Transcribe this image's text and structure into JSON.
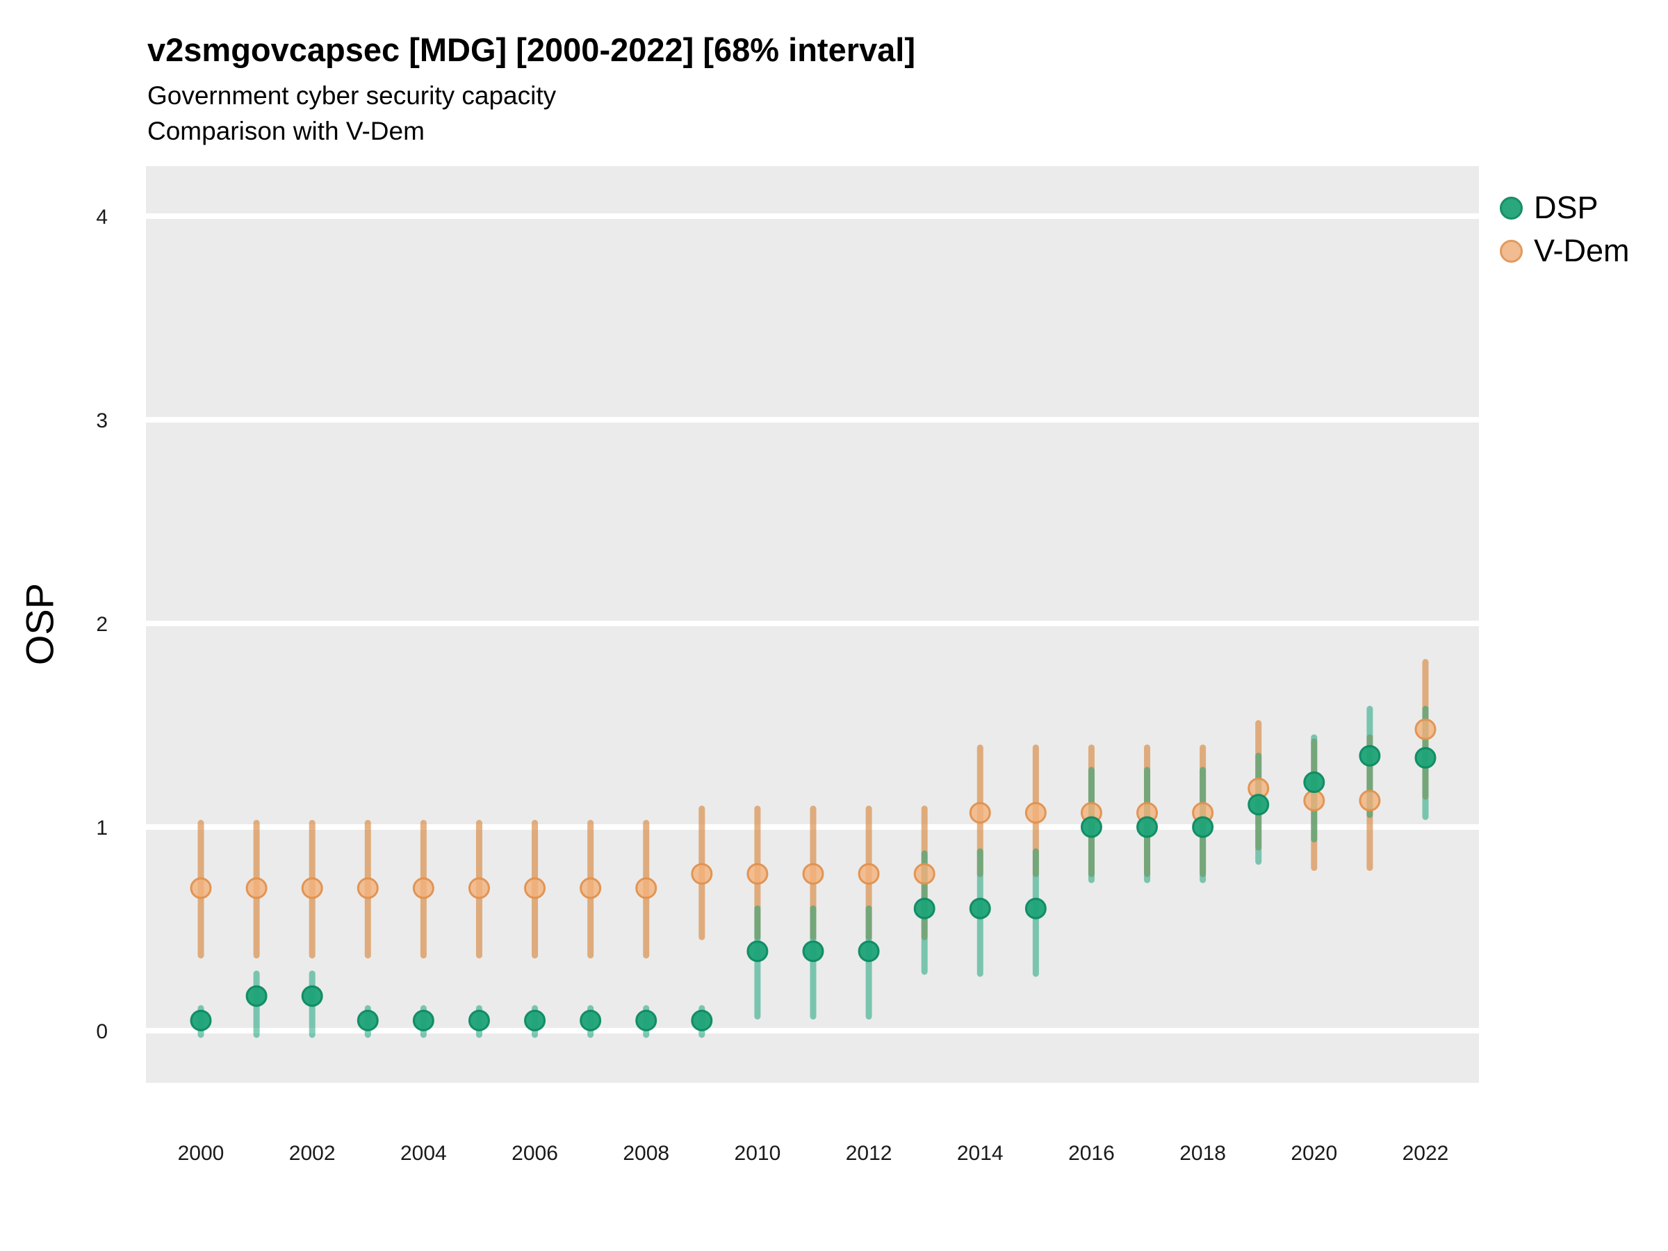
{
  "header": {
    "title": "v2smgovcapsec [MDG] [2000-2022] [68% interval]",
    "subtitle1": "Government cyber security capacity",
    "subtitle2": "Comparison with V-Dem"
  },
  "chart_data": {
    "type": "scatter",
    "variant": "pointrange-errorbar",
    "title": "v2smgovcapsec [MDG] [2000-2022] [68% interval]",
    "subtitle": [
      "Government cyber security capacity",
      "Comparison with V-Dem"
    ],
    "interval_note": "68% interval",
    "country": "MDG",
    "xlabel": "",
    "ylabel": "OSP",
    "x": [
      2000,
      2001,
      2002,
      2003,
      2004,
      2005,
      2006,
      2007,
      2008,
      2009,
      2010,
      2011,
      2012,
      2013,
      2014,
      2015,
      2016,
      2017,
      2018,
      2019,
      2020,
      2021,
      2022
    ],
    "x_tick_labels": [
      "2000",
      "2002",
      "2004",
      "2006",
      "2008",
      "2010",
      "2012",
      "2014",
      "2016",
      "2018",
      "2020",
      "2022"
    ],
    "x_tick_years": [
      2000,
      2002,
      2004,
      2006,
      2008,
      2010,
      2012,
      2014,
      2016,
      2018,
      2020,
      2022
    ],
    "y_ticks": [
      0,
      1,
      2,
      3,
      4
    ],
    "y_tick_labels": [
      "0",
      "1",
      "2",
      "3",
      "4"
    ],
    "ylim": [
      -0.26,
      4.25
    ],
    "xlim": [
      1999.0,
      2023.0
    ],
    "grid": "major-horizontal-only",
    "legend_position": "right-top",
    "panel_bg": "#ebebeb",
    "grid_color": "#ffffff",
    "series": [
      {
        "name": "DSP",
        "point_fill": "#1ea377",
        "point_stroke": "#0d8a62",
        "point_opacity": 0.95,
        "line_color": "#12a279",
        "line_opacity": 0.52,
        "legend_fill": "#2aa77c",
        "legend_stroke": "#188f66",
        "values": [
          0.05,
          0.17,
          0.17,
          0.05,
          0.05,
          0.05,
          0.05,
          0.05,
          0.05,
          0.05,
          0.39,
          0.39,
          0.39,
          0.6,
          0.6,
          0.6,
          1.0,
          1.0,
          1.0,
          1.11,
          1.22,
          1.35,
          1.34
        ],
        "lo": [
          -0.02,
          -0.02,
          -0.02,
          -0.02,
          -0.02,
          -0.02,
          -0.02,
          -0.02,
          -0.02,
          -0.02,
          0.07,
          0.07,
          0.07,
          0.29,
          0.28,
          0.28,
          0.74,
          0.74,
          0.74,
          0.83,
          0.94,
          1.06,
          1.05
        ],
        "hi": [
          0.11,
          0.28,
          0.28,
          0.11,
          0.11,
          0.11,
          0.11,
          0.11,
          0.11,
          0.11,
          0.6,
          0.6,
          0.6,
          0.87,
          0.88,
          0.88,
          1.28,
          1.28,
          1.28,
          1.35,
          1.44,
          1.58,
          1.58
        ]
      },
      {
        "name": "V-Dem",
        "point_fill": "#f2b27c",
        "point_stroke": "#e0914e",
        "point_opacity": 0.8,
        "line_color": "#d98840",
        "line_opacity": 0.65,
        "legend_fill": "#f1bc92",
        "legend_stroke": "#e29a5c",
        "values": [
          0.7,
          0.7,
          0.7,
          0.7,
          0.7,
          0.7,
          0.7,
          0.7,
          0.7,
          0.77,
          0.77,
          0.77,
          0.77,
          0.77,
          1.07,
          1.07,
          1.07,
          1.07,
          1.07,
          1.19,
          1.13,
          1.13,
          1.48
        ],
        "lo": [
          0.37,
          0.37,
          0.37,
          0.37,
          0.37,
          0.37,
          0.37,
          0.37,
          0.37,
          0.46,
          0.46,
          0.46,
          0.46,
          0.46,
          0.77,
          0.77,
          0.77,
          0.77,
          0.77,
          0.9,
          0.8,
          0.8,
          1.15
        ],
        "hi": [
          1.02,
          1.02,
          1.02,
          1.02,
          1.02,
          1.02,
          1.02,
          1.02,
          1.02,
          1.09,
          1.09,
          1.09,
          1.09,
          1.09,
          1.39,
          1.39,
          1.39,
          1.39,
          1.39,
          1.51,
          1.42,
          1.44,
          1.81
        ]
      }
    ]
  }
}
